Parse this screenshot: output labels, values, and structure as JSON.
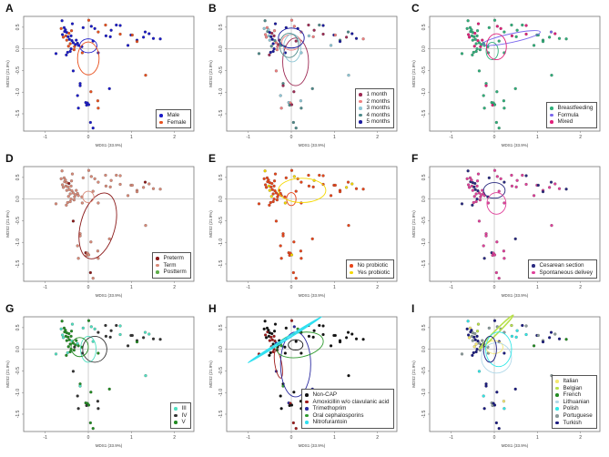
{
  "chart_data": {
    "type": "scatter",
    "xlabel": "MDS1 (33.9%)",
    "ylabel": "MDS2 (21.9%)",
    "xlim": [
      -1.5,
      2.45
    ],
    "ylim": [
      -1.9,
      0.75
    ],
    "xticks": [
      -1,
      0,
      1,
      2
    ],
    "yticks": [
      0.5,
      0.0,
      -0.5,
      -1.0,
      -1.5
    ],
    "ytick_labels": [
      "0.5",
      "0.0",
      "-0.5",
      "-1.0",
      "-1.5"
    ],
    "reference_lines": {
      "x": 0,
      "y": 0
    },
    "points": [
      [
        -0.61,
        0.65
      ],
      [
        0.01,
        0.66
      ],
      [
        -0.37,
        0.58
      ],
      [
        0.65,
        0.55
      ],
      [
        0.4,
        0.55
      ],
      [
        0.07,
        0.52
      ],
      [
        -0.12,
        0.49
      ],
      [
        0.15,
        0.47
      ],
      [
        -0.63,
        0.47
      ],
      [
        -0.56,
        0.49
      ],
      [
        0.74,
        0.54
      ],
      [
        0.53,
        0.43
      ],
      [
        0.23,
        0.39
      ],
      [
        1.32,
        0.39
      ],
      [
        1.41,
        0.35
      ],
      [
        0.74,
        0.34
      ],
      [
        0.99,
        0.32
      ],
      [
        1.02,
        0.32
      ],
      [
        0.41,
        0.3
      ],
      [
        0.51,
        0.28
      ],
      [
        1.28,
        0.27
      ],
      [
        1.51,
        0.24
      ],
      [
        1.67,
        0.23
      ],
      [
        1.13,
        0.2
      ],
      [
        1.13,
        0.17
      ],
      [
        0.92,
        0.08
      ],
      [
        0.11,
        0.18
      ],
      [
        -0.32,
        0.05
      ],
      [
        0.23,
        -0.09
      ],
      [
        -0.14,
        -0.09
      ],
      [
        -0.75,
        -0.11
      ],
      [
        -0.51,
        -0.14
      ],
      [
        -0.42,
        -0.06
      ],
      [
        -0.35,
        -0.51
      ],
      [
        1.33,
        -0.61
      ],
      [
        -0.19,
        -0.8
      ],
      [
        -0.19,
        -0.85
      ],
      [
        0.06,
        -0.99
      ],
      [
        0.49,
        -0.92
      ],
      [
        -0.25,
        -1.08
      ],
      [
        -0.06,
        -1.24
      ],
      [
        -0.02,
        -1.25
      ],
      [
        -0.04,
        -1.3
      ],
      [
        0.01,
        -1.29
      ],
      [
        0.22,
        -1.2
      ],
      [
        0.23,
        -1.37
      ],
      [
        -0.23,
        -1.37
      ],
      [
        0.05,
        -1.7
      ],
      [
        0.11,
        -1.83
      ],
      [
        -0.55,
        0.4
      ],
      [
        -0.5,
        0.38
      ],
      [
        -0.45,
        0.36
      ],
      [
        -0.6,
        0.33
      ],
      [
        -0.52,
        0.3
      ],
      [
        -0.47,
        0.28
      ],
      [
        -0.4,
        0.3
      ],
      [
        -0.58,
        0.27
      ],
      [
        -0.44,
        0.22
      ],
      [
        -0.5,
        0.2
      ],
      [
        -0.38,
        0.19
      ],
      [
        -0.35,
        0.14
      ],
      [
        -0.42,
        0.12
      ],
      [
        -0.3,
        0.1
      ],
      [
        -0.25,
        0.13
      ],
      [
        -0.46,
        0.06
      ],
      [
        -0.4,
        0.0
      ],
      [
        -0.33,
        -0.02
      ],
      [
        -0.48,
        -0.08
      ],
      [
        -0.28,
        0.2
      ],
      [
        -0.53,
        0.44
      ],
      [
        -0.39,
        0.42
      ],
      [
        -0.23,
        0.08
      ],
      [
        -0.15,
        0.05
      ]
    ],
    "panels": [
      {
        "label": "A",
        "groups": [
          {
            "name": "Male",
            "color": "#1a1ac8"
          },
          {
            "name": "Female",
            "color": "#e8501e"
          }
        ],
        "assign": "0100100010001001010000001001010000100100000011000001010010100100101000100",
        "ellipses": [
          {
            "group": 0,
            "cx": 0.0,
            "cy": 0.07,
            "rx": 0.2,
            "ry": 0.16,
            "angle": 0
          },
          {
            "group": 1,
            "cx": 0.0,
            "cy": -0.22,
            "rx": 0.25,
            "ry": 0.38,
            "angle": 0
          }
        ]
      },
      {
        "label": "B",
        "groups": [
          {
            "name": "1 month",
            "color": "#9e2a54"
          },
          {
            "name": "2 months",
            "color": "#f08080"
          },
          {
            "name": "3 months",
            "color": "#8fc7d6"
          },
          {
            "name": "4 months",
            "color": "#4e8a8a"
          },
          {
            "name": "5 months",
            "color": "#1a1a9e"
          }
        ],
        "assign": "3143014421401340412104134201243041230032213023133340124014231402341402133",
        "ellipses": [
          {
            "group": 0,
            "cx": 0.1,
            "cy": -0.3,
            "rx": 0.3,
            "ry": 0.55,
            "angle": 0
          },
          {
            "group": 1,
            "cx": 0.0,
            "cy": 0.15,
            "rx": 0.22,
            "ry": 0.18,
            "angle": 0
          },
          {
            "group": 2,
            "cx": 0.02,
            "cy": 0.02,
            "rx": 0.2,
            "ry": 0.32,
            "angle": 0
          },
          {
            "group": 3,
            "cx": -0.05,
            "cy": 0.08,
            "rx": 0.22,
            "ry": 0.28,
            "angle": 0
          },
          {
            "group": 4,
            "cx": 0.0,
            "cy": 0.25,
            "rx": 0.3,
            "ry": 0.23,
            "angle": 0
          }
        ]
      },
      {
        "label": "C",
        "groups": [
          {
            "name": "Breastfeeding",
            "color": "#2fb07a"
          },
          {
            "name": "Formula",
            "color": "#7b68ee"
          },
          {
            "name": "Mixed",
            "color": "#e0207a"
          }
        ],
        "assign": "0020020200200122002000000002000000002000002000000002200020020000200020000",
        "ellipses": [
          {
            "group": 0,
            "cx": -0.05,
            "cy": -0.05,
            "rx": 0.14,
            "ry": 0.2,
            "angle": 0
          },
          {
            "group": 1,
            "cx": 0.4,
            "cy": 0.25,
            "rx": 0.68,
            "ry": 0.1,
            "angle": -12
          },
          {
            "group": 2,
            "cx": 0.05,
            "cy": 0.05,
            "rx": 0.23,
            "ry": 0.3,
            "angle": 0
          }
        ]
      },
      {
        "label": "D",
        "groups": [
          {
            "name": "Preterm",
            "color": "#8b1a1a"
          },
          {
            "name": "Term",
            "color": "#d88a78"
          },
          {
            "name": "Postterm",
            "color": "#5fae4a"
          }
        ],
        "assign": "1111111111111011111111111111111110111111011111101110111111111111111111111",
        "ellipses": [
          {
            "group": 0,
            "cx": 0.22,
            "cy": -0.62,
            "rx": 0.4,
            "ry": 0.78,
            "angle": 15
          },
          {
            "group": 1,
            "cx": 0.0,
            "cy": 0.05,
            "rx": 0.13,
            "ry": 0.13,
            "angle": 0
          }
        ]
      },
      {
        "label": "E",
        "groups": [
          {
            "name": "No probiotic",
            "color": "#e8451a"
          },
          {
            "name": "Yes probiotic",
            "color": "#f5d800"
          }
        ],
        "assign": "1000010000010010000010000000010000000000000100000000010000100000100000000",
        "ellipses": [
          {
            "group": 0,
            "cx": 0.0,
            "cy": 0.0,
            "rx": 0.11,
            "ry": 0.15,
            "angle": 0
          },
          {
            "group": 1,
            "cx": 0.25,
            "cy": 0.2,
            "rx": 0.55,
            "ry": 0.28,
            "angle": 0
          }
        ]
      },
      {
        "label": "F",
        "groups": [
          {
            "name": "Cesarean section",
            "color": "#2a2a80"
          },
          {
            "name": "Spontaneous delivey",
            "color": "#e0409a"
          }
        ],
        "assign": "0111110111010011101111010111110011111101011111011000110110101111101111110",
        "ellipses": [
          {
            "group": 0,
            "cx": 0.0,
            "cy": 0.2,
            "rx": 0.25,
            "ry": 0.18,
            "angle": 0
          },
          {
            "group": 1,
            "cx": 0.05,
            "cy": -0.1,
            "rx": 0.22,
            "ry": 0.25,
            "angle": 0
          }
        ]
      },
      {
        "label": "G",
        "groups": [
          {
            "name": "III",
            "color": "#50e0c0"
          },
          {
            "name": "IV",
            "color": "#333333"
          },
          {
            "name": "V",
            "color": "#228b22"
          }
        ],
        "assign": "2201100002011000111111112101210221020221221211122222022202202220222022222",
        "ellipses": [
          {
            "group": 0,
            "cx": 0.0,
            "cy": 0.0,
            "rx": 0.18,
            "ry": 0.3,
            "angle": 0
          },
          {
            "group": 1,
            "cx": 0.15,
            "cy": 0.0,
            "rx": 0.28,
            "ry": 0.3,
            "angle": 0
          },
          {
            "group": 2,
            "cx": -0.2,
            "cy": 0.05,
            "rx": 0.2,
            "ry": 0.22,
            "angle": 0
          }
        ]
      },
      {
        "label": "H",
        "groups": [
          {
            "name": "Non-CAP",
            "color": "#111111"
          },
          {
            "name": "Amoxicillin w/o clavulanic acid",
            "color": "#9e1a1a"
          },
          {
            "name": "Trimethoprim",
            "color": "#2a2aa0"
          },
          {
            "name": "Oral cephalosporins",
            "color": "#2e9a2e"
          },
          {
            "name": "Nitrofurantoin",
            "color": "#30e0f0"
          }
        ],
        "assign": "0100020300000000000000000000001012003020210000011100101101112003110000030",
        "ellipses": [
          {
            "group": 0,
            "cx": 0.1,
            "cy": 0.1,
            "rx": 0.17,
            "ry": 0.12,
            "angle": 0
          },
          {
            "group": 1,
            "cx": -0.3,
            "cy": -0.35,
            "rx": 0.08,
            "ry": 0.32,
            "angle": -10
          },
          {
            "group": 2,
            "cx": 0.1,
            "cy": -0.35,
            "rx": 0.35,
            "ry": 0.75,
            "angle": 0
          },
          {
            "group": 3,
            "cx": 0.2,
            "cy": 0.1,
            "rx": 0.55,
            "ry": 0.28,
            "angle": -12
          },
          {
            "group": 4,
            "cx": -0.15,
            "cy": 0.22,
            "rx": 1.0,
            "ry": 0.02,
            "angle": -32
          }
        ]
      },
      {
        "label": "I",
        "groups": [
          {
            "name": "Italian",
            "color": "#f5e870"
          },
          {
            "name": "Belgian",
            "color": "#b8e04a"
          },
          {
            "name": "French",
            "color": "#228b22"
          },
          {
            "name": "Lithuanian",
            "color": "#b0d8e8"
          },
          {
            "name": "Polish",
            "color": "#30e8e8"
          },
          {
            "name": "Portuguese",
            "color": "#8a9a9a"
          },
          {
            "name": "Turkish",
            "color": "#1a1a80"
          }
        ],
        "assign": "4616155560545654654466256266655664566664565604666655656606565066065656165",
        "ellipses": [
          {
            "group": 0,
            "cx": 0.0,
            "cy": 0.05,
            "rx": 0.2,
            "ry": 0.15,
            "angle": 0
          },
          {
            "group": 1,
            "cx": 0.05,
            "cy": 0.4,
            "rx": 0.55,
            "ry": 0.04,
            "angle": -45
          },
          {
            "group": 3,
            "cx": 0.05,
            "cy": -0.2,
            "rx": 0.35,
            "ry": 0.35,
            "angle": 0
          },
          {
            "group": 4,
            "cx": 0.1,
            "cy": 0.0,
            "rx": 0.3,
            "ry": 0.4,
            "angle": 0
          },
          {
            "group": 6,
            "cx": -0.1,
            "cy": 0.0,
            "rx": 0.15,
            "ry": 0.3,
            "angle": 0
          }
        ]
      }
    ]
  }
}
